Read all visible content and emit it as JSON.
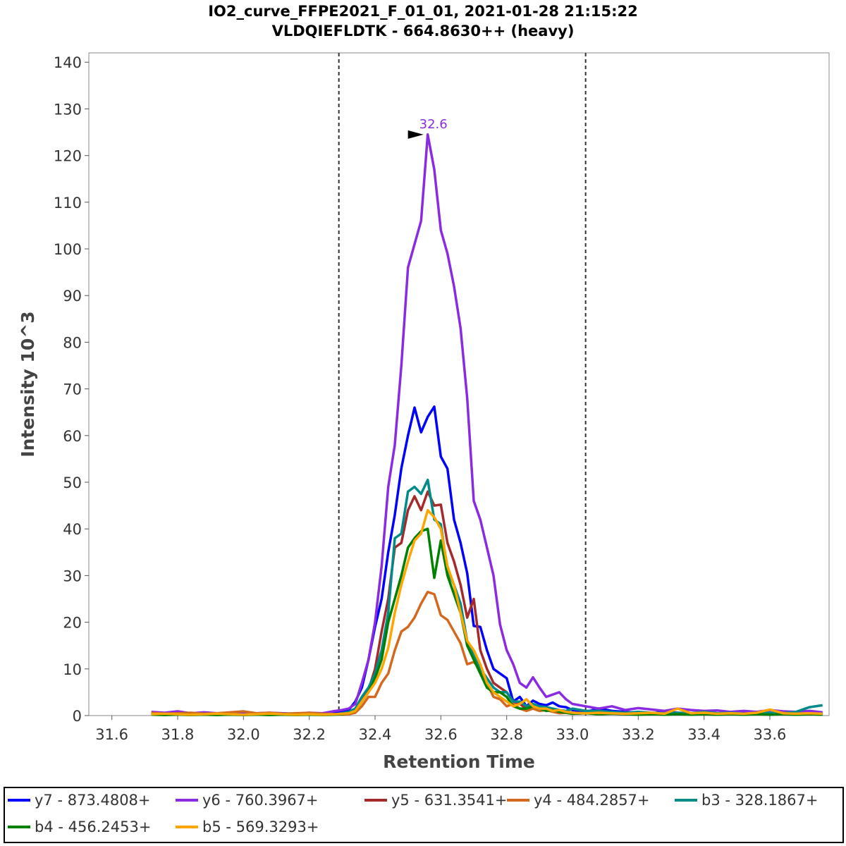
{
  "header": {
    "title_line1": "IO2_curve_FFPE2021_F_01_01, 2021-01-28 21:15:22",
    "title_line2": "VLDQIEFLDTK - 664.8630++ (heavy)"
  },
  "chart_data": {
    "type": "line",
    "title": "IO2_curve_FFPE2021_F_01_01, 2021-01-28 21:15:22",
    "subtitle": "VLDQIEFLDTK - 664.8630++ (heavy)",
    "xlabel": "Retention Time",
    "ylabel": "Intensity 10^3",
    "xlim": [
      31.53,
      33.78
    ],
    "ylim": [
      0,
      142
    ],
    "xticks": [
      "31.6",
      "31.8",
      "32.0",
      "32.2",
      "32.4",
      "32.6",
      "32.8",
      "33.0",
      "33.2",
      "33.4",
      "33.6"
    ],
    "yticks": [
      "0",
      "10",
      "20",
      "30",
      "40",
      "50",
      "60",
      "70",
      "80",
      "90",
      "100",
      "110",
      "120",
      "130",
      "140"
    ],
    "integration_bounds": [
      32.29,
      33.04
    ],
    "peak_annotation": {
      "label": "32.6",
      "x": 32.56,
      "y": 124.5
    },
    "x": [
      31.72,
      31.76,
      31.8,
      31.84,
      31.88,
      31.92,
      31.96,
      32.0,
      32.04,
      32.08,
      32.12,
      32.16,
      32.2,
      32.24,
      32.28,
      32.3,
      32.32,
      32.34,
      32.36,
      32.38,
      32.4,
      32.42,
      32.44,
      32.46,
      32.48,
      32.5,
      32.52,
      32.54,
      32.56,
      32.58,
      32.6,
      32.62,
      32.64,
      32.66,
      32.68,
      32.7,
      32.72,
      32.74,
      32.76,
      32.78,
      32.8,
      32.82,
      32.84,
      32.86,
      32.88,
      32.9,
      32.92,
      32.94,
      32.96,
      32.98,
      33.0,
      33.04,
      33.08,
      33.12,
      33.16,
      33.2,
      33.24,
      33.28,
      33.32,
      33.36,
      33.4,
      33.44,
      33.48,
      33.52,
      33.56,
      33.6,
      33.64,
      33.68,
      33.72,
      33.76
    ],
    "series": [
      {
        "name": "y7 - 873.4808+",
        "color": "#0000ff",
        "values": [
          0.5,
          0.3,
          0.6,
          0.4,
          0.5,
          0.3,
          0.4,
          0.5,
          0.3,
          0.4,
          0.5,
          0.3,
          0.4,
          0.5,
          0.6,
          0.8,
          1.2,
          3.0,
          6.0,
          12.0,
          19.0,
          25.0,
          35.0,
          43.0,
          53.0,
          60.0,
          66.0,
          60.7,
          64.0,
          66.2,
          55.5,
          52.9,
          42.0,
          37.0,
          30.5,
          19.2,
          19.0,
          14.0,
          10.0,
          9.0,
          8.0,
          3.0,
          4.0,
          2.0,
          3.2,
          2.5,
          2.2,
          2.8,
          2.0,
          1.8,
          1.2,
          0.8,
          1.5,
          1.0,
          0.8,
          0.6,
          0.5,
          0.8,
          0.6,
          0.5,
          0.6,
          0.5,
          0.4,
          0.6,
          0.5,
          0.6,
          0.4,
          0.5,
          0.8,
          0.6
        ]
      },
      {
        "name": "y6 - 760.3967+",
        "color": "#8a2be2",
        "values": [
          0.8,
          0.6,
          0.9,
          0.5,
          0.7,
          0.5,
          0.6,
          0.7,
          0.5,
          0.6,
          0.5,
          0.4,
          0.6,
          0.5,
          1.0,
          1.2,
          1.5,
          2.5,
          7.0,
          12.0,
          20.0,
          32.0,
          49.0,
          58.0,
          75.0,
          96.0,
          101.0,
          106.0,
          124.5,
          117.0,
          104.0,
          99.0,
          92.0,
          83.0,
          68.0,
          46.0,
          42.0,
          36.0,
          30.0,
          19.5,
          14.0,
          11.0,
          7.0,
          6.0,
          8.2,
          6.0,
          4.0,
          4.5,
          5.0,
          3.5,
          2.5,
          2.0,
          1.5,
          2.0,
          1.2,
          1.6,
          1.3,
          1.0,
          1.5,
          1.2,
          1.0,
          1.1,
          0.8,
          1.0,
          0.8,
          1.2,
          0.9,
          0.8,
          1.0,
          0.7
        ]
      },
      {
        "name": "y5 - 631.3541+",
        "color": "#a52a2a",
        "values": [
          0.3,
          0.2,
          0.3,
          0.2,
          0.3,
          0.2,
          0.3,
          0.2,
          0.3,
          0.2,
          0.3,
          0.2,
          0.3,
          0.2,
          0.3,
          0.4,
          0.6,
          1.5,
          3.5,
          5.5,
          10.0,
          18.0,
          25.0,
          36.0,
          37.0,
          44.0,
          47.0,
          44.0,
          48.0,
          45.0,
          45.2,
          37.0,
          33.0,
          28.0,
          21.0,
          25.0,
          14.0,
          10.0,
          7.0,
          6.0,
          5.0,
          3.0,
          2.5,
          1.5,
          2.0,
          1.5,
          1.2,
          1.0,
          0.8,
          1.0,
          0.6,
          0.5,
          0.4,
          0.5,
          0.3,
          0.4,
          0.3,
          0.4,
          0.3,
          0.4,
          0.3,
          0.2,
          0.3,
          0.4,
          0.3,
          0.2,
          0.3,
          0.2,
          0.3,
          0.2
        ]
      },
      {
        "name": "y4 - 484.2857+",
        "color": "#d2691e",
        "values": [
          0.6,
          0.4,
          0.5,
          0.6,
          0.4,
          0.5,
          0.7,
          0.9,
          0.5,
          0.6,
          0.4,
          0.5,
          0.6,
          0.4,
          0.3,
          0.2,
          0.3,
          0.6,
          2.0,
          4.0,
          4.0,
          7.0,
          9.0,
          14.0,
          18.0,
          19.0,
          21.0,
          24.0,
          26.5,
          26.0,
          21.5,
          20.5,
          18.0,
          15.5,
          11.0,
          11.5,
          10.0,
          7.0,
          4.0,
          3.5,
          2.0,
          2.5,
          1.5,
          1.0,
          1.5,
          1.0,
          1.2,
          0.8,
          0.5,
          0.6,
          0.4,
          0.5,
          0.6,
          0.5,
          0.4,
          0.5,
          0.4,
          0.3,
          0.5,
          0.4,
          0.3,
          0.4,
          0.5,
          0.3,
          0.4,
          0.5,
          0.6,
          0.4,
          0.5,
          0.3
        ]
      },
      {
        "name": "b3 - 328.1867+",
        "color": "#008b8b",
        "values": [
          0.3,
          0.2,
          0.3,
          0.2,
          0.3,
          0.2,
          0.3,
          0.2,
          0.3,
          0.2,
          0.3,
          0.2,
          0.3,
          0.2,
          0.3,
          0.5,
          0.8,
          1.5,
          4.0,
          6.0,
          9.0,
          14.0,
          22.0,
          38.0,
          39.0,
          48.0,
          49.0,
          47.5,
          50.5,
          42.0,
          41.0,
          31.0,
          28.0,
          24.0,
          16.0,
          13.0,
          10.0,
          8.0,
          6.0,
          5.0,
          5.0,
          3.0,
          3.0,
          2.0,
          2.5,
          2.0,
          1.8,
          1.5,
          1.2,
          1.0,
          1.5,
          1.0,
          1.0,
          0.8,
          0.6,
          0.8,
          0.6,
          0.5,
          0.6,
          0.5,
          0.8,
          0.5,
          0.6,
          0.4,
          0.5,
          0.6,
          0.5,
          0.8,
          1.8,
          2.2
        ]
      },
      {
        "name": "b4 - 456.2453+",
        "color": "#008000",
        "values": [
          0.2,
          0.1,
          0.2,
          0.1,
          0.2,
          0.1,
          0.2,
          0.1,
          0.2,
          0.1,
          0.2,
          0.1,
          0.2,
          0.1,
          0.2,
          0.3,
          0.5,
          1.0,
          3.0,
          5.0,
          8.0,
          12.0,
          20.0,
          25.0,
          30.0,
          36.0,
          38.0,
          39.5,
          40.0,
          29.5,
          37.5,
          30.0,
          26.0,
          22.0,
          15.0,
          12.0,
          9.0,
          6.0,
          5.0,
          5.0,
          4.0,
          2.0,
          1.5,
          1.5,
          2.0,
          1.5,
          1.0,
          1.2,
          0.8,
          0.6,
          0.4,
          0.5,
          0.3,
          0.4,
          0.3,
          0.2,
          0.3,
          0.2,
          0.3,
          0.2,
          0.3,
          0.2,
          0.3,
          0.2,
          0.3,
          0.2,
          0.3,
          0.2,
          0.3,
          0.2
        ]
      },
      {
        "name": "b5 - 569.3293+",
        "color": "#ffa500",
        "values": [
          0.3,
          0.4,
          0.3,
          0.2,
          0.3,
          0.4,
          0.3,
          0.2,
          0.3,
          0.4,
          0.3,
          0.2,
          0.3,
          0.2,
          0.3,
          0.4,
          0.5,
          1.0,
          3.0,
          5.0,
          7.0,
          10.0,
          14.5,
          22.0,
          28.0,
          33.0,
          37.5,
          39.0,
          44.0,
          42.5,
          40.0,
          32.0,
          28.0,
          22.0,
          16.0,
          14.0,
          11.0,
          7.0,
          5.0,
          4.0,
          3.0,
          2.0,
          2.5,
          3.5,
          2.0,
          1.5,
          1.5,
          1.0,
          1.2,
          0.8,
          0.6,
          0.5,
          0.6,
          0.5,
          0.4,
          0.5,
          0.6,
          0.4,
          1.5,
          0.5,
          0.6,
          0.4,
          0.5,
          0.4,
          0.6,
          1.3,
          0.5,
          0.4,
          0.5,
          0.4
        ]
      }
    ]
  }
}
